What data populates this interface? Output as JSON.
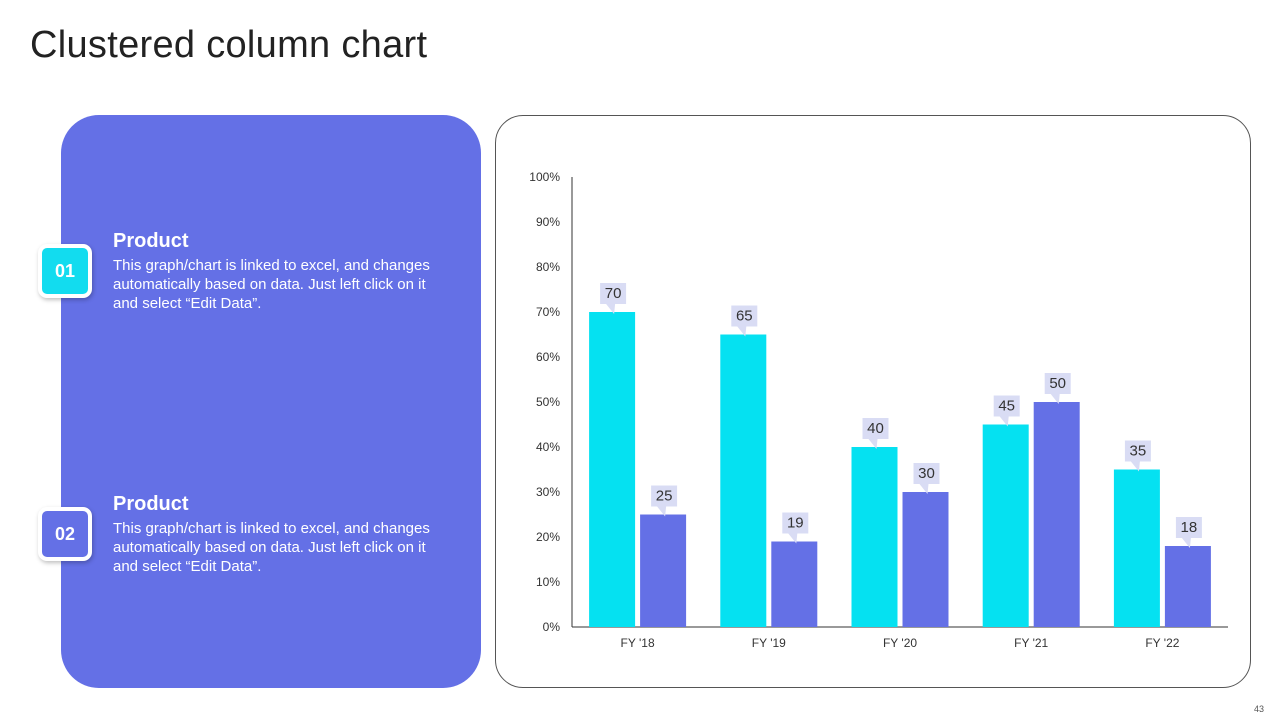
{
  "page": {
    "title": "Clustered column chart",
    "slide_number": "43"
  },
  "items": [
    {
      "number": "01",
      "title": "Product",
      "text": "This graph/chart is linked to excel, and changes automatically based on data. Just left click on it and select “Edit Data”.",
      "badge_color": "#12dcef"
    },
    {
      "number": "02",
      "title": "Product",
      "text": "This graph/chart is linked to excel, and changes automatically based on data. Just left click on it and select “Edit Data”.",
      "badge_color": "#6470e6"
    }
  ],
  "colors": {
    "panel": "#6470e6",
    "series1": "#05e1f1",
    "series2": "#6470e6",
    "label_bg": "#d9dcf4"
  },
  "chart_data": {
    "type": "bar",
    "categories": [
      "FY '18",
      "FY '19",
      "FY '20",
      "FY '21",
      "FY '22"
    ],
    "series": [
      {
        "values": [
          70,
          65,
          40,
          45,
          35
        ],
        "color": "#05e1f1"
      },
      {
        "values": [
          25,
          19,
          30,
          50,
          18
        ],
        "color": "#6470e6"
      }
    ],
    "yticks": [
      "0%",
      "10%",
      "20%",
      "30%",
      "40%",
      "50%",
      "60%",
      "70%",
      "80%",
      "90%",
      "100%"
    ],
    "ylim": [
      0,
      100
    ],
    "grid": false,
    "data_labels": true
  }
}
